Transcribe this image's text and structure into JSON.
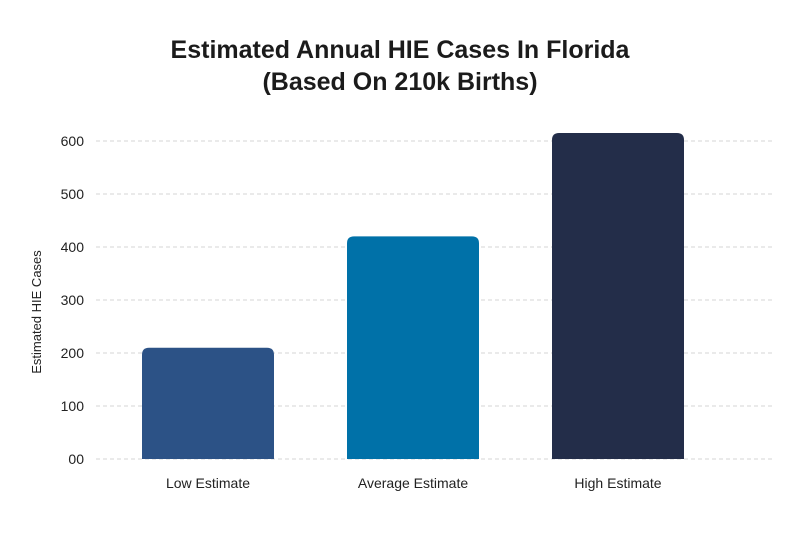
{
  "chart_data": {
    "type": "bar",
    "title": "Estimated Annual HIE Cases In Florida",
    "subtitle": "(Based On 210k Births)",
    "xlabel": "",
    "ylabel": "Estimated HIE Cases",
    "categories": [
      "Low Estimate",
      "Average Estimate",
      "High Estimate"
    ],
    "values": [
      210,
      420,
      615
    ],
    "colors": [
      "#2c5286",
      "#0071a8",
      "#232d49"
    ],
    "ylim": [
      0,
      600
    ],
    "yticks": [
      0,
      100,
      200,
      300,
      400,
      500,
      600
    ],
    "ytick_labels": [
      "00",
      "100",
      "200",
      "300",
      "400",
      "500",
      "600"
    ],
    "grid": true,
    "legend": "none"
  }
}
